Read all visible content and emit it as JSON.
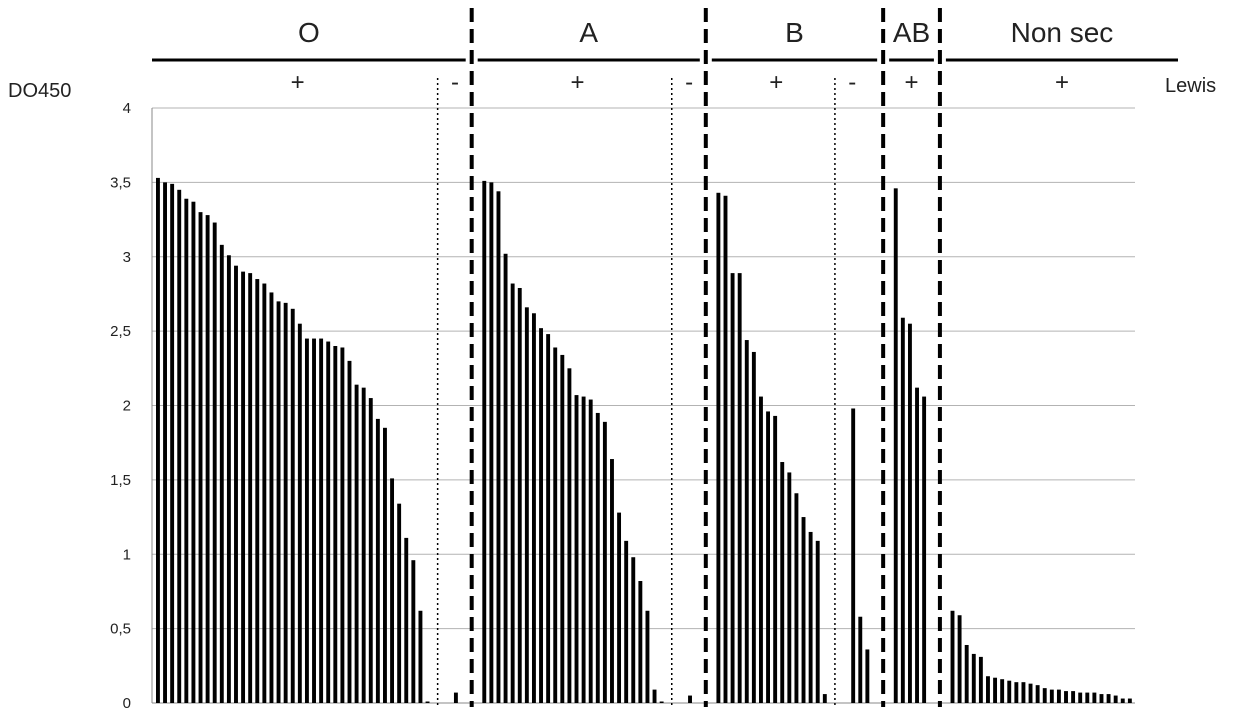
{
  "chart_data": {
    "type": "bar",
    "ylabel": "DO450",
    "secondary_label": "Lewis",
    "ylim": [
      0,
      4
    ],
    "yticks": [
      "0",
      "0,5",
      "1",
      "1,5",
      "2",
      "2,5",
      "3",
      "3,5",
      "4"
    ],
    "grid": true,
    "colors": {
      "bar": "#000000",
      "grid": "#b3b3b3",
      "axis": "#888888"
    },
    "groups": [
      {
        "label": "O",
        "subgroups": [
          {
            "sign": "+",
            "values": [
              3.53,
              3.5,
              3.49,
              3.45,
              3.39,
              3.37,
              3.3,
              3.28,
              3.23,
              3.08,
              3.01,
              2.94,
              2.9,
              2.89,
              2.85,
              2.82,
              2.76,
              2.7,
              2.69,
              2.65,
              2.55,
              2.45,
              2.45,
              2.45,
              2.43,
              2.4,
              2.39,
              2.3,
              2.14,
              2.12,
              2.05,
              1.91,
              1.85,
              1.51,
              1.34,
              1.11,
              0.96,
              0.62,
              0.01
            ]
          },
          {
            "sign": "-",
            "values": [
              0.07
            ]
          }
        ]
      },
      {
        "label": "A",
        "subgroups": [
          {
            "sign": "+",
            "values": [
              3.51,
              3.5,
              3.44,
              3.02,
              2.82,
              2.79,
              2.66,
              2.62,
              2.52,
              2.48,
              2.39,
              2.34,
              2.25,
              2.07,
              2.06,
              2.04,
              1.95,
              1.89,
              1.64,
              1.28,
              1.09,
              0.98,
              0.82,
              0.62,
              0.09,
              0.01
            ]
          },
          {
            "sign": "-",
            "values": [
              0.05
            ]
          }
        ]
      },
      {
        "label": "B",
        "subgroups": [
          {
            "sign": "+",
            "values": [
              3.43,
              3.41,
              2.89,
              2.89,
              2.44,
              2.36,
              2.06,
              1.96,
              1.93,
              1.62,
              1.55,
              1.41,
              1.25,
              1.15,
              1.09,
              0.06
            ]
          },
          {
            "sign": "-",
            "values": [
              1.98,
              0.58,
              0.36
            ]
          }
        ]
      },
      {
        "label": "AB",
        "subgroups": [
          {
            "sign": "+",
            "values": [
              3.46,
              2.59,
              2.55,
              2.12,
              2.06
            ]
          }
        ]
      },
      {
        "label": "Non sec",
        "subgroups": [
          {
            "sign": "+",
            "values": [
              0.62,
              0.59,
              0.39,
              0.33,
              0.31,
              0.18,
              0.17,
              0.16,
              0.15,
              0.14,
              0.14,
              0.13,
              0.12,
              0.1,
              0.09,
              0.09,
              0.08,
              0.08,
              0.07,
              0.07,
              0.07,
              0.06,
              0.06,
              0.05,
              0.03,
              0.03
            ]
          }
        ]
      }
    ]
  }
}
